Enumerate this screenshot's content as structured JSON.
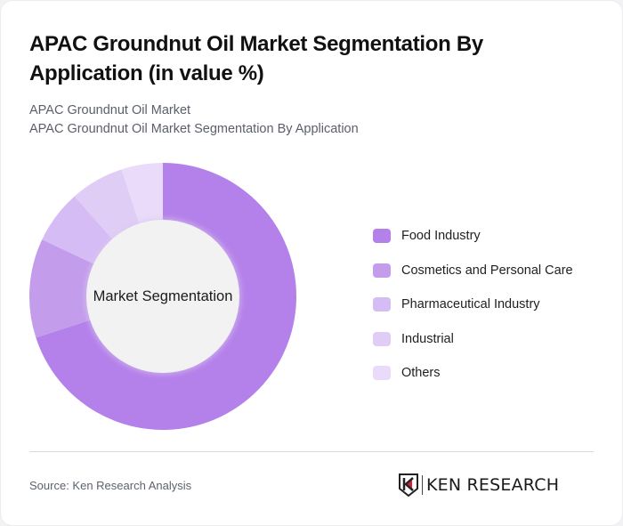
{
  "header": {
    "title": "APAC Groundnut Oil Market Segmentation By Application (in value %)",
    "subtitle_line1": "APAC Groundnut Oil Market",
    "subtitle_line2": "APAC Groundnut Oil Market Segmentation By Application"
  },
  "chart": {
    "center_label": "Market Segmentation"
  },
  "legend": {
    "items": [
      {
        "label": "Food Industry",
        "color": "#b481ea"
      },
      {
        "label": "Cosmetics and Personal Care",
        "color": "#c39cec"
      },
      {
        "label": "Pharmaceutical Industry",
        "color": "#d6bcf4"
      },
      {
        "label": "Industrial",
        "color": "#e0cdf6"
      },
      {
        "label": "Others",
        "color": "#e9dbf9"
      }
    ]
  },
  "footer": {
    "source": "Source: Ken Research Analysis",
    "logo_text": "KEN RESEARCH"
  },
  "chart_data": {
    "type": "pie",
    "variant": "donut",
    "title": "APAC Groundnut Oil Market Segmentation By Application (in value %)",
    "center_label": "Market Segmentation",
    "categories": [
      "Food Industry",
      "Cosmetics and Personal Care",
      "Pharmaceutical Industry",
      "Industrial",
      "Others"
    ],
    "values": [
      70,
      12,
      6.5,
      6.5,
      5
    ],
    "colors": [
      "#b481ea",
      "#c39cec",
      "#d6bcf4",
      "#e0cdf6",
      "#e9dbf9"
    ],
    "unit": "%",
    "legend_position": "right"
  }
}
